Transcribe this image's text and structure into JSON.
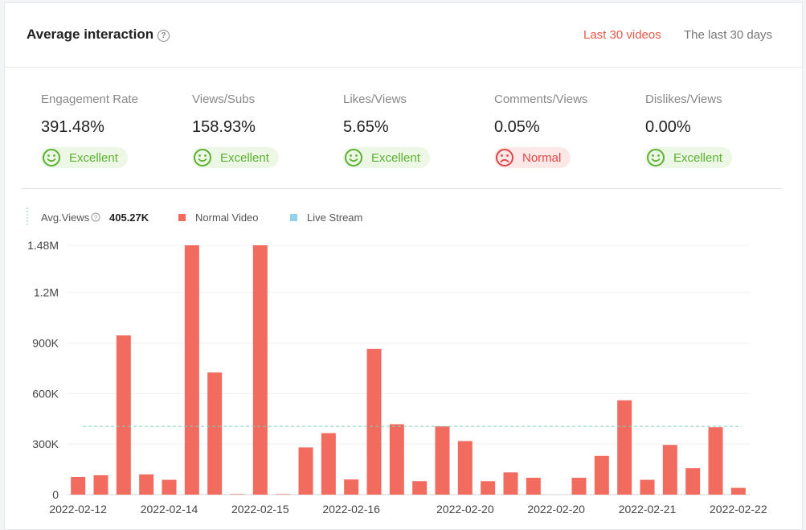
{
  "header": {
    "title": "Average interaction",
    "help_icon": "?",
    "tabs": [
      {
        "label": "Last 30 videos",
        "active": true
      },
      {
        "label": "The last 30 days",
        "active": false
      }
    ]
  },
  "metrics": [
    {
      "label": "Engagement Rate",
      "value": "391.48%",
      "rating": "Excellent",
      "status": "good"
    },
    {
      "label": "Views/Subs",
      "value": "158.93%",
      "rating": "Excellent",
      "status": "good"
    },
    {
      "label": "Likes/Views",
      "value": "5.65%",
      "rating": "Excellent",
      "status": "good"
    },
    {
      "label": "Comments/Views",
      "value": "0.05%",
      "rating": "Normal",
      "status": "normal"
    },
    {
      "label": "Dislikes/Views",
      "value": "0.00%",
      "rating": "Excellent",
      "status": "good"
    }
  ],
  "legend": {
    "avg_label": "Avg.Views",
    "avg_value": "405.27K",
    "normal_label": "Normal Video",
    "live_label": "Live Stream"
  },
  "colors": {
    "accent": "#e8584a",
    "bar": "#f26b5f",
    "live": "#90d3ea",
    "avg_line": "#7fd1bd",
    "good": "#5cb031",
    "normal": "#e04545"
  },
  "chart_data": {
    "type": "bar",
    "title": "",
    "xlabel": "",
    "ylabel": "",
    "ylim": [
      0,
      1480000
    ],
    "y_ticks": [
      {
        "value": 0,
        "label": "0"
      },
      {
        "value": 300000,
        "label": "300K"
      },
      {
        "value": 600000,
        "label": "600K"
      },
      {
        "value": 900000,
        "label": "900K"
      },
      {
        "value": 1200000,
        "label": "1.2M"
      },
      {
        "value": 1480000,
        "label": "1.48M"
      }
    ],
    "x_tick_labels": [
      "2022-02-12",
      "2022-02-14",
      "2022-02-15",
      "2022-02-16",
      "2022-02-20",
      "2022-02-20",
      "2022-02-21",
      "2022-02-22"
    ],
    "average": 405270,
    "series": [
      {
        "name": "Normal Video",
        "values": [
          105000,
          115000,
          945000,
          120000,
          88000,
          1480000,
          725000,
          3000,
          1480000,
          3000,
          280000,
          365000,
          90000,
          865000,
          418000,
          80000,
          405000,
          318000,
          80000,
          132000,
          100000,
          0,
          100000,
          230000,
          560000,
          88000,
          295000,
          157000,
          400000,
          40000
        ]
      },
      {
        "name": "Live Stream",
        "values": []
      }
    ]
  }
}
